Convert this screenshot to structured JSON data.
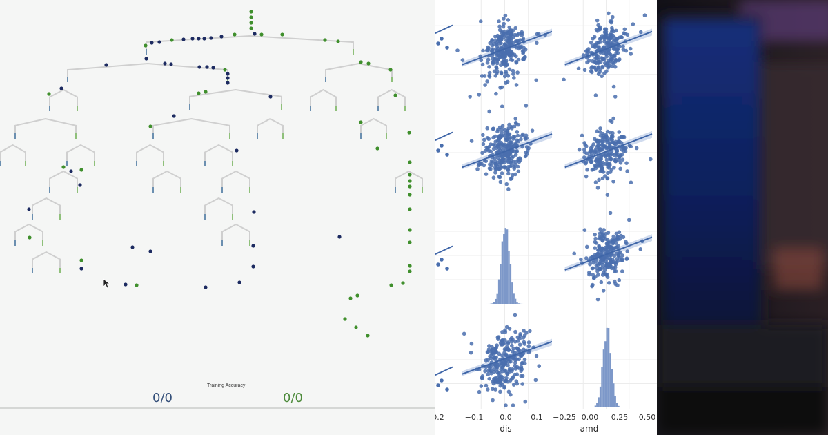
{
  "tree_viz": {
    "caption": "Training Accuracy",
    "left_score": "0/0",
    "right_score": "0/0",
    "colors": {
      "class_a": "#1c2a60",
      "class_b": "#3f8f2c",
      "branch": "#cfcfcf"
    }
  },
  "pairplot": {
    "x_tick_labels_cols": [
      [
        "0.2"
      ],
      [
        "−0.1",
        "0.0",
        "0.1"
      ],
      [
        "−0.25",
        "0.00",
        "0.25",
        "0.50"
      ]
    ],
    "x_labels": [
      "",
      "dis",
      "amd"
    ],
    "colors": {
      "point": "#4a6fae",
      "fit": "#3f66a8",
      "band": "#c4d2ea",
      "grid": "#ececec"
    }
  }
}
